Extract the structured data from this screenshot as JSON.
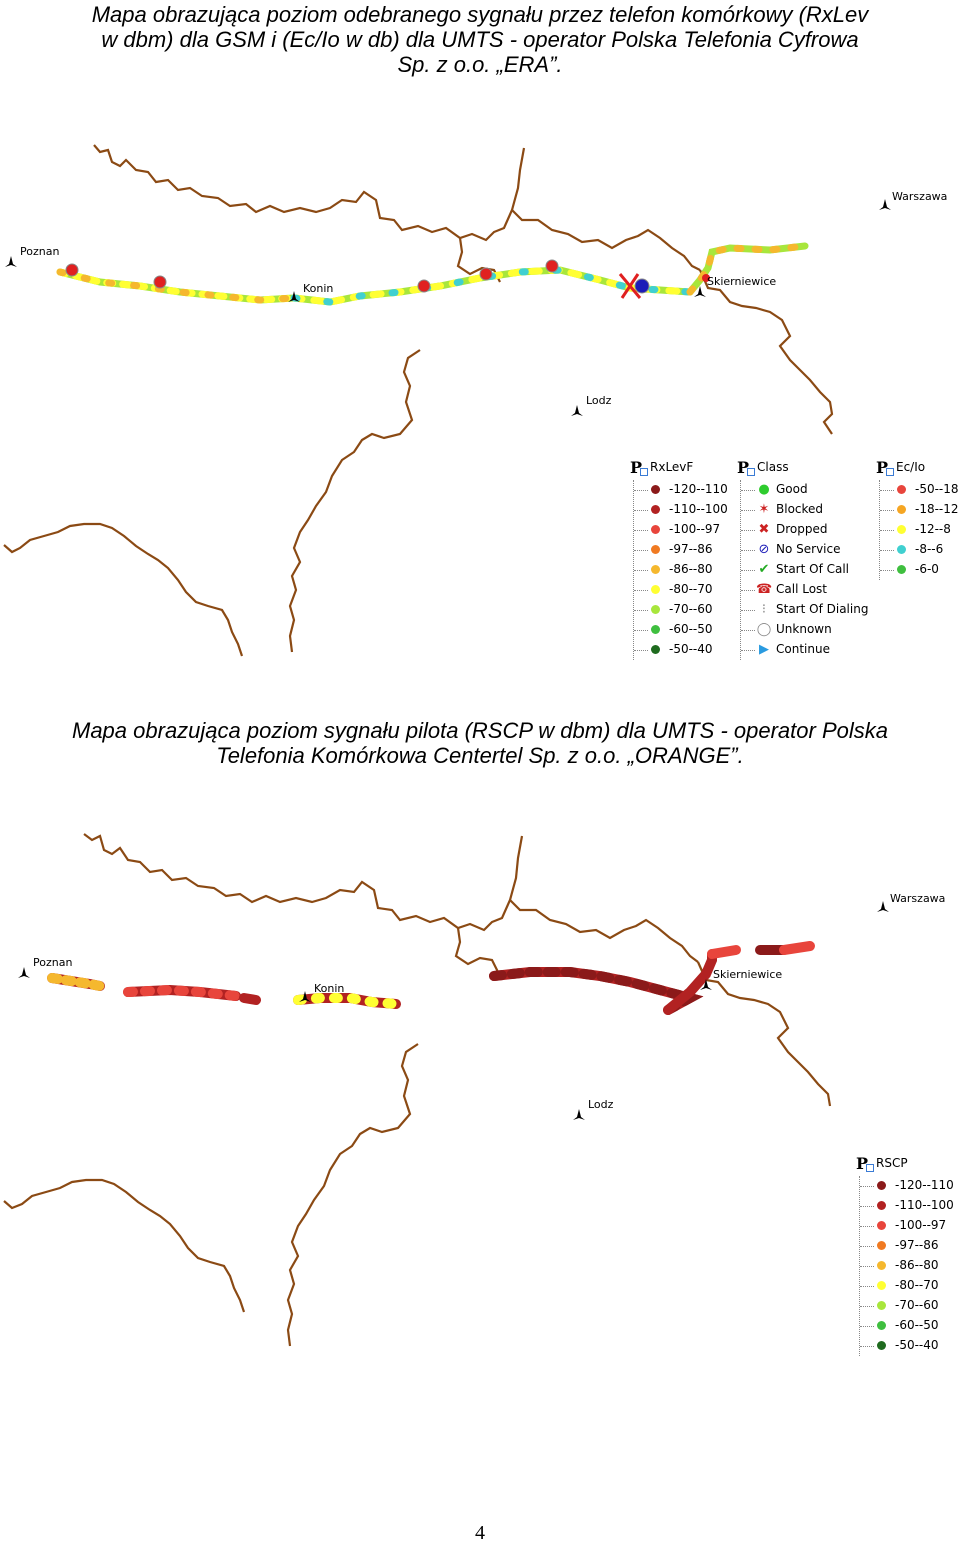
{
  "captions": {
    "top": [
      "Mapa obrazująca poziom odebranego sygnału przez telefon komórkowy (RxLev",
      "w dbm) dla GSM i (Ec/Io w db) dla UMTS - operator Polska Telefonia Cyfrowa",
      "Sp. z o.o. „ERA”."
    ],
    "bottom": [
      "Mapa obrazująca poziom sygnału pilota (RSCP w dbm) dla UMTS - operator Polska",
      "Telefonia Komórkowa Centertel Sp. z o.o. „ORANGE”."
    ]
  },
  "cities": {
    "poznan": "Poznan",
    "konin": "Konin",
    "skierniewice": "Skierniewice",
    "warszawa": "Warszawa",
    "lodz": "Lodz"
  },
  "legend_rxlev": {
    "title": "RxLevF",
    "items": [
      {
        "label": "-120--110",
        "color": "#8b1a1a"
      },
      {
        "label": "-110--100",
        "color": "#b22222"
      },
      {
        "label": "-100--97",
        "color": "#e8453c"
      },
      {
        "label": "-97--86",
        "color": "#f07a22"
      },
      {
        "label": "-86--80",
        "color": "#f5b82e"
      },
      {
        "label": "-80--70",
        "color": "#ffff33"
      },
      {
        "label": "-70--60",
        "color": "#a8e63c"
      },
      {
        "label": "-60--50",
        "color": "#3fbf3f"
      },
      {
        "label": "-50--40",
        "color": "#1f6b1f"
      }
    ]
  },
  "legend_class": {
    "title": "Class",
    "items": [
      {
        "label": "Good",
        "icon": "good-icon",
        "color": "#2ecc2e"
      },
      {
        "label": "Blocked",
        "icon": "blocked-icon",
        "color": "#cc2222"
      },
      {
        "label": "Dropped",
        "icon": "dropped-icon",
        "color": "#cc2222"
      },
      {
        "label": "No Service",
        "icon": "no-service-icon",
        "color": "#1c1cb8"
      },
      {
        "label": "Start Of Call",
        "icon": "start-of-call-icon",
        "color": "#22aa22"
      },
      {
        "label": "Call Lost",
        "icon": "call-lost-icon",
        "color": "#cc2222"
      },
      {
        "label": "Start Of Dialing",
        "icon": "start-of-dialing-icon",
        "color": "#888888"
      },
      {
        "label": "Unknown",
        "icon": "unknown-icon",
        "color": "#888888"
      },
      {
        "label": "Continue",
        "icon": "continue-icon",
        "color": "#2a9be0"
      }
    ]
  },
  "legend_ecio": {
    "title": "Ec/Io",
    "items": [
      {
        "label": "-50--18",
        "color": "#e8453c"
      },
      {
        "label": "-18--12",
        "color": "#f5a623"
      },
      {
        "label": "-12--8",
        "color": "#ffff33"
      },
      {
        "label": "-8--6",
        "color": "#40d0d0"
      },
      {
        "label": "-6-0",
        "color": "#3fbf3f"
      }
    ]
  },
  "legend_rscp": {
    "title": "RSCP",
    "items": [
      {
        "label": "-120--110",
        "color": "#8b1a1a"
      },
      {
        "label": "-110--100",
        "color": "#b22222"
      },
      {
        "label": "-100--97",
        "color": "#e8453c"
      },
      {
        "label": "-97--86",
        "color": "#f07a22"
      },
      {
        "label": "-86--80",
        "color": "#f5b82e"
      },
      {
        "label": "-80--70",
        "color": "#ffff33"
      },
      {
        "label": "-70--60",
        "color": "#a8e63c"
      },
      {
        "label": "-60--50",
        "color": "#3fbf3f"
      },
      {
        "label": "-50--40",
        "color": "#1f6b1f"
      }
    ]
  },
  "page_number": "4"
}
